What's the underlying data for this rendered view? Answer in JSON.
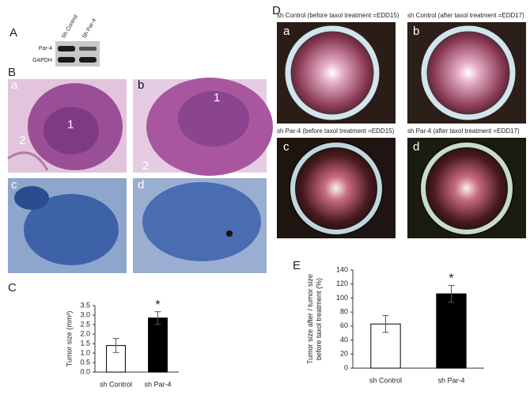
{
  "figure": {
    "panel_labels": [
      "A",
      "B",
      "C",
      "D",
      "E"
    ],
    "blot": {
      "lanes": [
        "Sh Control",
        "Sh Par-4"
      ],
      "rows": [
        "Par-4",
        "GAPDH"
      ]
    },
    "histology": [
      {
        "letter": "a",
        "marks": [
          "1",
          "2"
        ]
      },
      {
        "letter": "b",
        "marks": [
          "1",
          "2"
        ]
      },
      {
        "letter": "c"
      },
      {
        "letter": "d"
      }
    ],
    "photos": [
      {
        "letter": "a",
        "caption": "sh Control (before taxol treatment =EDD15)"
      },
      {
        "letter": "b",
        "caption": "sh Control (after taxol treatment =EDD17)"
      },
      {
        "letter": "c",
        "caption": "sh Par-4 (before taxol treatment =EDD15)"
      },
      {
        "letter": "d",
        "caption": "sh Par-4 (after taxol treatment =EDD17)"
      }
    ]
  },
  "chart_data": [
    {
      "type": "bar",
      "ylabel": [
        "Tumor size  (mm²)"
      ],
      "categories": [
        "sh Control",
        "sh Par-4"
      ],
      "values": [
        1.4,
        2.85
      ],
      "errors": [
        0.37,
        0.33
      ],
      "colors": [
        "#ffffff",
        "#000000"
      ],
      "significance_label": "*",
      "ylim": [
        0,
        3.5
      ],
      "yticks": [
        {
          "value": 0,
          "label": "0.0"
        },
        0.5,
        {
          "value": 1,
          "label": "1.0"
        },
        1.5,
        {
          "value": 2,
          "label": "2.0"
        },
        2.5,
        {
          "value": 3,
          "label": "3.0"
        },
        3.5
      ]
    },
    {
      "type": "bar",
      "ylabel": [
        "Tumor size after / tumor size",
        "before  taxol treatment  (%)"
      ],
      "categories": [
        "sh Control",
        "sh Par-4"
      ],
      "values": [
        63,
        106
      ],
      "errors": [
        12,
        12
      ],
      "colors": [
        "#ffffff",
        "#000000"
      ],
      "significance_label": "*",
      "ylim": [
        0,
        140
      ],
      "yticks": [
        0,
        20,
        40,
        60,
        80,
        100,
        120,
        140
      ]
    }
  ]
}
